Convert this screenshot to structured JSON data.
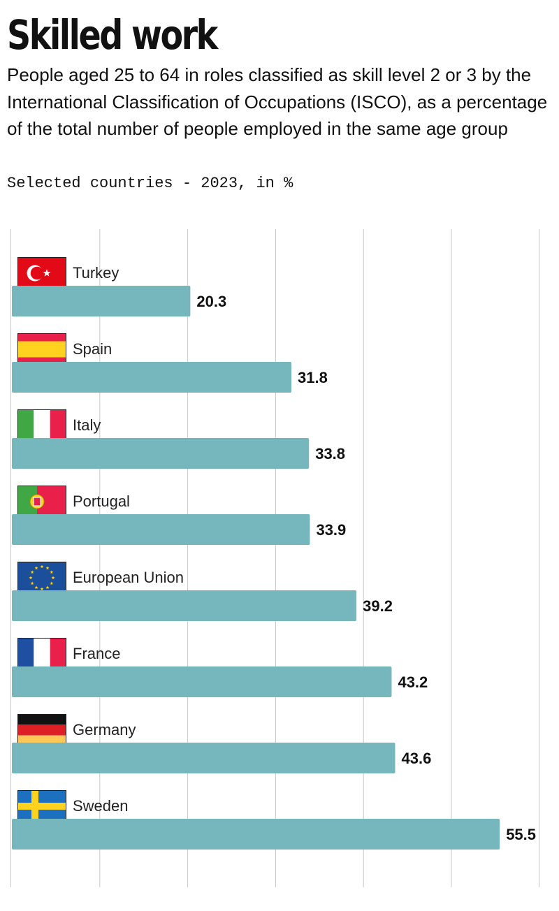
{
  "header": {
    "title": "Skilled work",
    "subtitle": "People aged 25 to 64 in roles classified as skill level 2 or 3 by the International Classification of Occupations (ISCO), as a percentage of the total number of people employed in the same age group",
    "note": "Selected countries - 2023, in %"
  },
  "colors": {
    "bar": "#75b7bd",
    "grid": "#c8c8c8"
  },
  "chart_data": {
    "type": "bar",
    "orientation": "horizontal",
    "title": "Skilled work",
    "xlabel": "",
    "ylabel": "",
    "xlim": [
      0,
      60
    ],
    "grid": true,
    "categories": [
      "Turkey",
      "Spain",
      "Italy",
      "Portugal",
      "European Union",
      "France",
      "Germany",
      "Sweden"
    ],
    "values": [
      20.3,
      31.8,
      33.8,
      33.9,
      39.2,
      43.2,
      43.6,
      55.5
    ],
    "value_labels": [
      "20.3",
      "31.8",
      "33.8",
      "33.9",
      "39.2",
      "43.2",
      "43.6",
      "55.5"
    ],
    "flags": [
      "turkey-flag",
      "spain-flag",
      "italy-flag",
      "portugal-flag",
      "european-union-flag",
      "france-flag",
      "germany-flag",
      "sweden-flag"
    ]
  }
}
